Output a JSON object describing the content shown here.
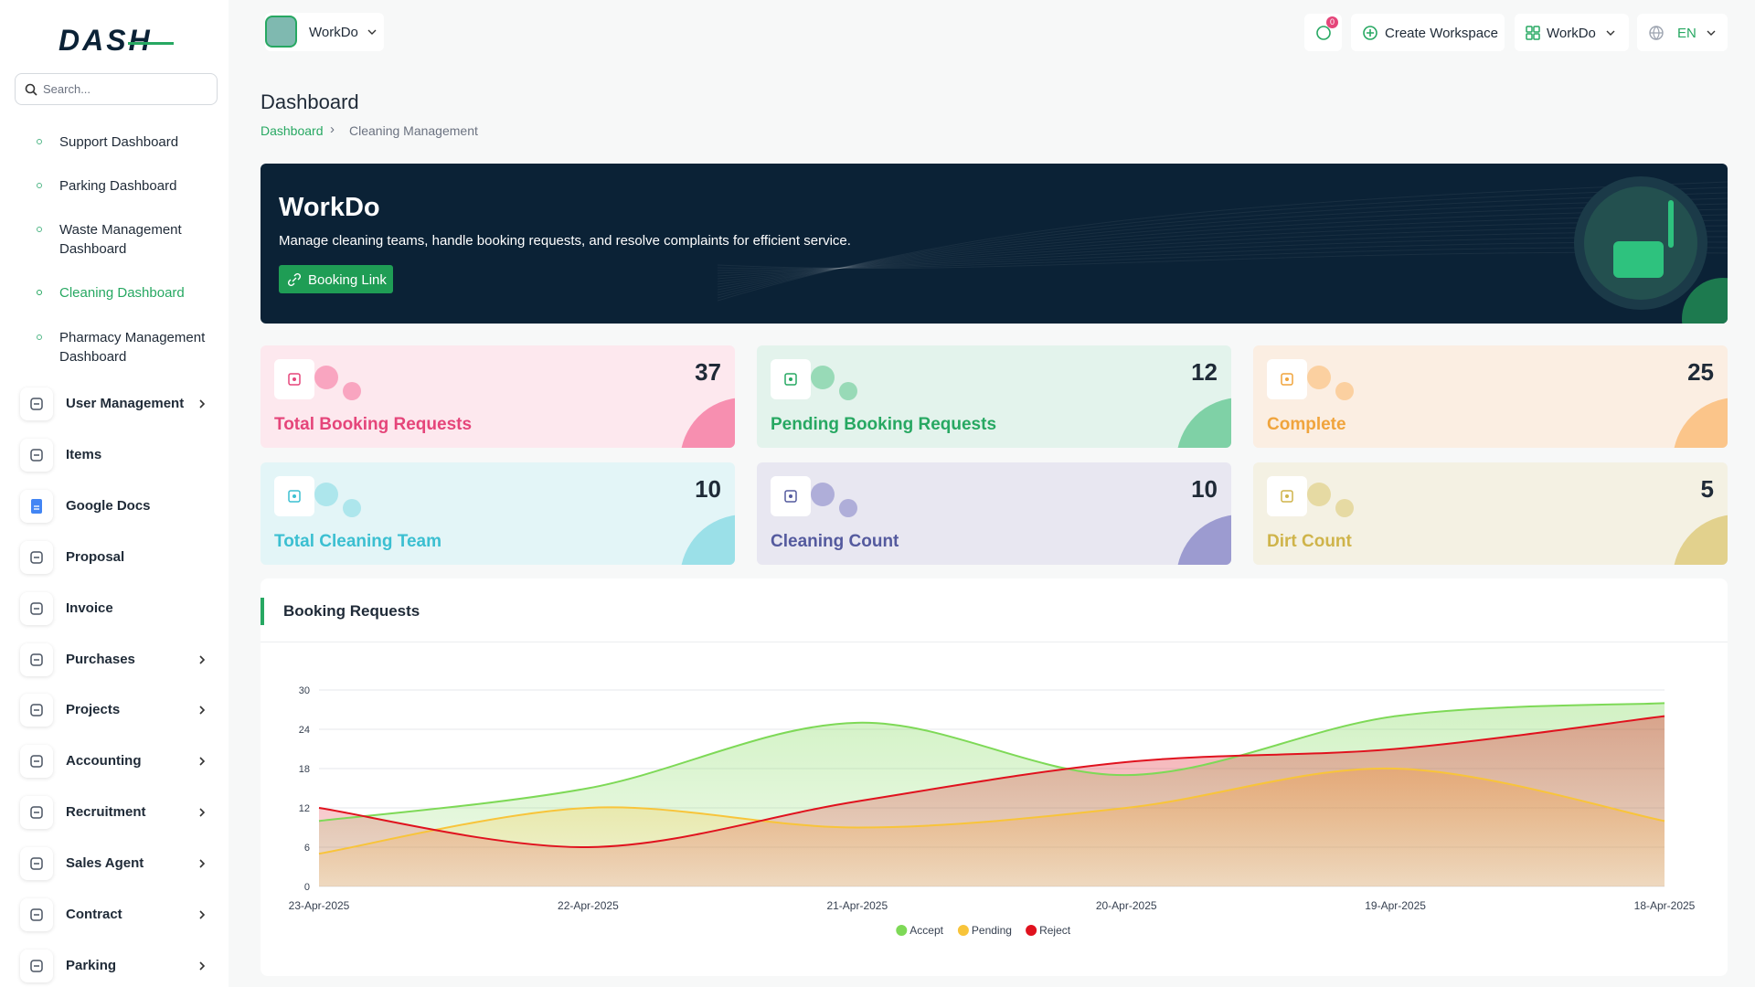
{
  "sidebar": {
    "logo": "DASH",
    "search_placeholder": "Search...",
    "dashboard_links": [
      {
        "label": "Support Dashboard",
        "active": false
      },
      {
        "label": "Parking Dashboard",
        "active": false
      },
      {
        "label": "Waste Management Dashboard",
        "active": false
      },
      {
        "label": "Cleaning Dashboard",
        "active": true
      },
      {
        "label": "Pharmacy Management Dashboard",
        "active": false
      }
    ],
    "menu": [
      {
        "label": "User Management",
        "submenu": true
      },
      {
        "label": "Items",
        "submenu": false
      },
      {
        "label": "Google Docs",
        "submenu": false
      },
      {
        "label": "Proposal",
        "submenu": false
      },
      {
        "label": "Invoice",
        "submenu": false
      },
      {
        "label": "Purchases",
        "submenu": true
      },
      {
        "label": "Projects",
        "submenu": true
      },
      {
        "label": "Accounting",
        "submenu": true
      },
      {
        "label": "Recruitment",
        "submenu": true
      },
      {
        "label": "Sales Agent",
        "submenu": true
      },
      {
        "label": "Contract",
        "submenu": true
      },
      {
        "label": "Parking",
        "submenu": true
      }
    ]
  },
  "header": {
    "workspace": "WorkDo",
    "notifications": "0",
    "create_workspace": "Create Workspace",
    "user_workspace": "WorkDo",
    "language": "EN"
  },
  "page": {
    "title": "Dashboard",
    "breadcrumb": [
      "Dashboard",
      "Cleaning Management"
    ]
  },
  "banner": {
    "title": "WorkDo",
    "description": "Manage cleaning teams, handle booking requests, and resolve complaints for efficient service.",
    "button": "Booking Link"
  },
  "cards": [
    {
      "label": "Total Booking Requests",
      "value": "37",
      "color": "#e5457a",
      "bg": "#fde8ee",
      "accent": "#f78fb0"
    },
    {
      "label": "Pending Booking Requests",
      "value": "12",
      "color": "#27a862",
      "bg": "#e3f3ec",
      "accent": "#7fd1a6"
    },
    {
      "label": "Complete",
      "value": "25",
      "color": "#f0a43c",
      "bg": "#fbeee2",
      "accent": "#fbc58a"
    },
    {
      "label": "Total Cleaning Team",
      "value": "10",
      "color": "#3bbfd1",
      "bg": "#e3f5f7",
      "accent": "#9be0e8"
    },
    {
      "label": "Cleaning Count",
      "value": "10",
      "color": "#545a9e",
      "bg": "#e8e7f1",
      "accent": "#9c9bd0"
    },
    {
      "label": "Dirt Count",
      "value": "5",
      "color": "#cfb44a",
      "bg": "#f4f1e3",
      "accent": "#e2d18d"
    }
  ],
  "chart_data": {
    "type": "area",
    "title": "Booking Requests",
    "categories": [
      "23-Apr-2025",
      "22-Apr-2025",
      "21-Apr-2025",
      "20-Apr-2025",
      "19-Apr-2025",
      "18-Apr-2025"
    ],
    "series": [
      {
        "name": "Accept",
        "color": "#7ed957",
        "values": [
          10,
          15,
          25,
          17,
          26,
          28
        ]
      },
      {
        "name": "Pending",
        "color": "#f8c43a",
        "values": [
          5,
          12,
          9,
          12,
          18,
          10
        ]
      },
      {
        "name": "Reject",
        "color": "#e0121e",
        "values": [
          12,
          6,
          13,
          19,
          21,
          26
        ]
      }
    ],
    "ylim": [
      0,
      30
    ],
    "yticks": [
      0,
      6,
      12,
      18,
      24,
      30
    ],
    "grid": true,
    "legend": "bottom"
  }
}
